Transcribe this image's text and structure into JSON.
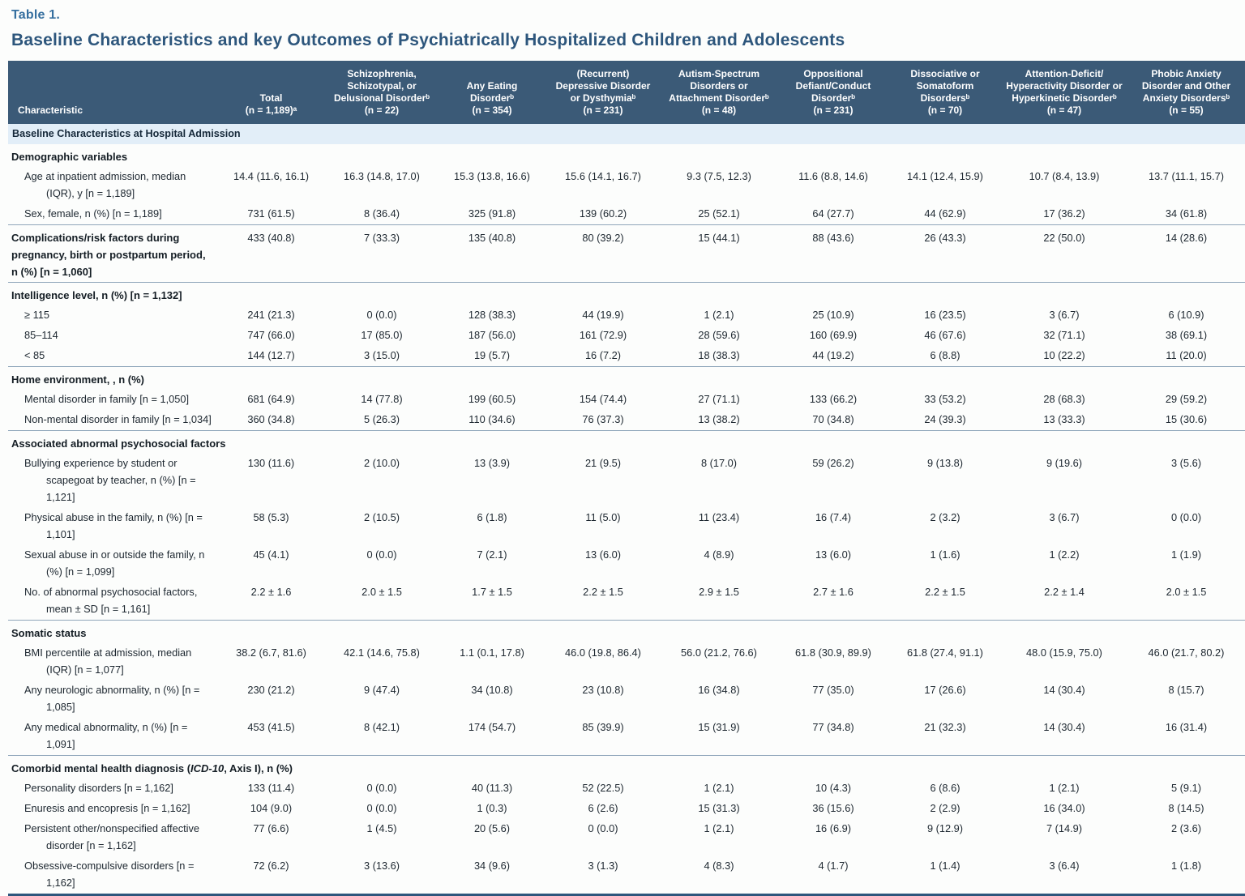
{
  "table_label": "Table 1.",
  "title": "Baseline Characteristics and key Outcomes of Psychiatrically Hospitalized Children and Adolescents",
  "colors": {
    "header_background": "#3b5a77",
    "header_text": "#ffffff",
    "section_band_background": "#e2eef8",
    "accent_dark_blue": "#2d567c",
    "table_label_blue": "#356f9f",
    "divider_line": "#8fa6ba"
  },
  "header": {
    "columns": [
      {
        "lines": [
          "Characteristic"
        ]
      },
      {
        "lines": [
          "Total",
          "(n = 1,189)ᵃ"
        ]
      },
      {
        "lines": [
          "Schizophrenia,",
          "Schizotypal, or",
          "Delusional Disorderᵇ",
          "(n = 22)"
        ]
      },
      {
        "lines": [
          "Any Eating",
          "Disorderᵇ",
          "(n = 354)"
        ]
      },
      {
        "lines": [
          "(Recurrent)",
          "Depressive Disorder",
          "or Dysthymiaᵇ",
          "(n = 231)"
        ]
      },
      {
        "lines": [
          "Autism-Spectrum",
          "Disorders or",
          "Attachment Disorderᵇ",
          "(n = 48)"
        ]
      },
      {
        "lines": [
          "Oppositional",
          "Defiant/Conduct",
          "Disorderᵇ",
          "(n = 231)"
        ]
      },
      {
        "lines": [
          "Dissociative or",
          "Somatoform",
          "Disordersᵇ",
          "(n = 70)"
        ]
      },
      {
        "lines": [
          "Attention-Deficit/",
          "Hyperactivity Disorder or",
          "Hyperkinetic Disorderᵇ",
          "(n = 47)"
        ]
      },
      {
        "lines": [
          "Phobic Anxiety",
          "Disorder and Other",
          "Anxiety Disordersᵇ",
          "(n = 55)"
        ]
      }
    ]
  },
  "sections": [
    {
      "type": "band",
      "label": "Baseline Characteristics at Hospital Admission"
    },
    {
      "type": "group",
      "label": "Demographic variables",
      "rows": [
        {
          "label": "Age at inpatient admission, median (IQR), y [n = 1,189]",
          "values": [
            "14.4 (11.6, 16.1)",
            "16.3 (14.8, 17.0)",
            "15.3 (13.8, 16.6)",
            "15.6 (14.1, 16.7)",
            "9.3 (7.5, 12.3)",
            "11.6 (8.8, 14.6)",
            "14.1 (12.4, 15.9)",
            "10.7 (8.4, 13.9)",
            "13.7 (11.1, 15.7)"
          ]
        },
        {
          "label": "Sex, female, n (%) [n = 1,189]",
          "values": [
            "731 (61.5)",
            "8 (36.4)",
            "325 (91.8)",
            "139 (60.2)",
            "25 (52.1)",
            "64 (27.7)",
            "44 (62.9)",
            "17 (36.2)",
            "34 (61.8)"
          ]
        }
      ]
    },
    {
      "type": "group-data",
      "label": "Complications/risk factors during pregnancy, birth or postpartum period, n (%) [n = 1,060]",
      "values": [
        "433 (40.8)",
        "7 (33.3)",
        "135 (40.8)",
        "80 (39.2)",
        "15 (44.1)",
        "88 (43.6)",
        "26 (43.3)",
        "22 (50.0)",
        "14 (28.6)"
      ]
    },
    {
      "type": "group",
      "label": "Intelligence level, n (%) [n = 1,132]",
      "rows": [
        {
          "label": "≥ 115",
          "values": [
            "241 (21.3)",
            "0 (0.0)",
            "128 (38.3)",
            "44 (19.9)",
            "1 (2.1)",
            "25 (10.9)",
            "16 (23.5)",
            "3 (6.7)",
            "6 (10.9)"
          ]
        },
        {
          "label": "85–114",
          "values": [
            "747 (66.0)",
            "17 (85.0)",
            "187 (56.0)",
            "161 (72.9)",
            "28 (59.6)",
            "160 (69.9)",
            "46 (67.6)",
            "32 (71.1)",
            "38 (69.1)"
          ]
        },
        {
          "label": "< 85",
          "values": [
            "144 (12.7)",
            "3 (15.0)",
            "19 (5.7)",
            "16 (7.2)",
            "18 (38.3)",
            "44 (19.2)",
            "6 (8.8)",
            "10 (22.2)",
            "11 (20.0)"
          ]
        }
      ]
    },
    {
      "type": "group",
      "label": "Home environment, , n (%)",
      "rows": [
        {
          "label": "Mental disorder in family [n = 1,050]",
          "values": [
            "681 (64.9)",
            "14 (77.8)",
            "199 (60.5)",
            "154 (74.4)",
            "27 (71.1)",
            "133 (66.2)",
            "33 (53.2)",
            "28 (68.3)",
            "29 (59.2)"
          ]
        },
        {
          "label": "Non-mental disorder in family [n = 1,034]",
          "values": [
            "360 (34.8)",
            "5 (26.3)",
            "110 (34.6)",
            "76 (37.3)",
            "13 (38.2)",
            "70 (34.8)",
            "24 (39.3)",
            "13 (33.3)",
            "15 (30.6)"
          ]
        }
      ]
    },
    {
      "type": "group",
      "label": "Associated abnormal psychosocial factors",
      "rows": [
        {
          "label": "Bullying experience by student or scapegoat by teacher, n (%) [n = 1,121]",
          "values": [
            "130 (11.6)",
            "2 (10.0)",
            "13 (3.9)",
            "21 (9.5)",
            "8 (17.0)",
            "59 (26.2)",
            "9 (13.8)",
            "9 (19.6)",
            "3 (5.6)"
          ]
        },
        {
          "label": "Physical abuse in the family, n (%) [n = 1,101]",
          "values": [
            "58 (5.3)",
            "2 (10.5)",
            "6 (1.8)",
            "11 (5.0)",
            "11 (23.4)",
            "16 (7.4)",
            "2 (3.2)",
            "3 (6.7)",
            "0 (0.0)"
          ]
        },
        {
          "label": "Sexual abuse in or outside the family, n (%) [n = 1,099]",
          "values": [
            "45 (4.1)",
            "0 (0.0)",
            "7 (2.1)",
            "13 (6.0)",
            "4 (8.9)",
            "13 (6.0)",
            "1 (1.6)",
            "1 (2.2)",
            "1 (1.9)"
          ]
        },
        {
          "label": "No. of abnormal psychosocial factors, mean ± SD [n = 1,161]",
          "values": [
            "2.2 ± 1.6",
            "2.0 ± 1.5",
            "1.7 ± 1.5",
            "2.2 ± 1.5",
            "2.9 ± 1.5",
            "2.7 ± 1.6",
            "2.2 ± 1.5",
            "2.2 ± 1.4",
            "2.0 ± 1.5"
          ]
        }
      ]
    },
    {
      "type": "group",
      "label": "Somatic status",
      "rows": [
        {
          "label": "BMI percentile at admission, median (IQR) [n = 1,077]",
          "values": [
            "38.2 (6.7, 81.6)",
            "42.1 (14.6, 75.8)",
            "1.1 (0.1, 17.8)",
            "46.0 (19.8, 86.4)",
            "56.0 (21.2, 76.6)",
            "61.8 (30.9, 89.9)",
            "61.8 (27.4, 91.1)",
            "48.0 (15.9, 75.0)",
            "46.0 (21.7, 80.2)"
          ]
        },
        {
          "label": "Any neurologic abnormality, n (%) [n = 1,085]",
          "values": [
            "230 (21.2)",
            "9 (47.4)",
            "34 (10.8)",
            "23 (10.8)",
            "16 (34.8)",
            "77 (35.0)",
            "17 (26.6)",
            "14 (30.4)",
            "8 (15.7)"
          ]
        },
        {
          "label": "Any medical abnormality, n (%) [n = 1,091]",
          "values": [
            "453 (41.5)",
            "8 (42.1)",
            "174 (54.7)",
            "85 (39.9)",
            "15 (31.9)",
            "77 (34.8)",
            "21 (32.3)",
            "14 (30.4)",
            "16 (31.4)"
          ]
        }
      ]
    },
    {
      "type": "group",
      "label": "Comorbid mental health diagnosis (ICD-10, Axis I), n (%)",
      "label_parts": [
        {
          "t": "Comorbid mental health diagnosis ("
        },
        {
          "t": "ICD-10",
          "i": true
        },
        {
          "t": ", Axis I), n (%)"
        }
      ],
      "rows": [
        {
          "label": "Personality disorders [n = 1,162]",
          "values": [
            "133 (11.4)",
            "0 (0.0)",
            "40 (11.3)",
            "52 (22.5)",
            "1 (2.1)",
            "10 (4.3)",
            "6 (8.6)",
            "1 (2.1)",
            "5 (9.1)"
          ]
        },
        {
          "label": "Enuresis and encopresis [n = 1,162]",
          "values": [
            "104 (9.0)",
            "0 (0.0)",
            "1 (0.3)",
            "6 (2.6)",
            "15 (31.3)",
            "36 (15.6)",
            "2 (2.9)",
            "16 (34.0)",
            "8 (14.5)"
          ]
        },
        {
          "label": "Persistent other/nonspecified affective disorder [n = 1,162]",
          "values": [
            "77 (6.6)",
            "1 (4.5)",
            "20 (5.6)",
            "0 (0.0)",
            "1 (2.1)",
            "16 (6.9)",
            "9 (12.9)",
            "7 (14.9)",
            "2 (3.6)"
          ]
        },
        {
          "label": "Obsessive-compulsive disorders [n = 1,162]",
          "values": [
            "72 (6.2)",
            "3 (13.6)",
            "34 (9.6)",
            "3 (1.3)",
            "4 (8.3)",
            "4 (1.7)",
            "1 (1.4)",
            "3 (6.4)",
            "1 (1.8)"
          ]
        }
      ]
    }
  ]
}
